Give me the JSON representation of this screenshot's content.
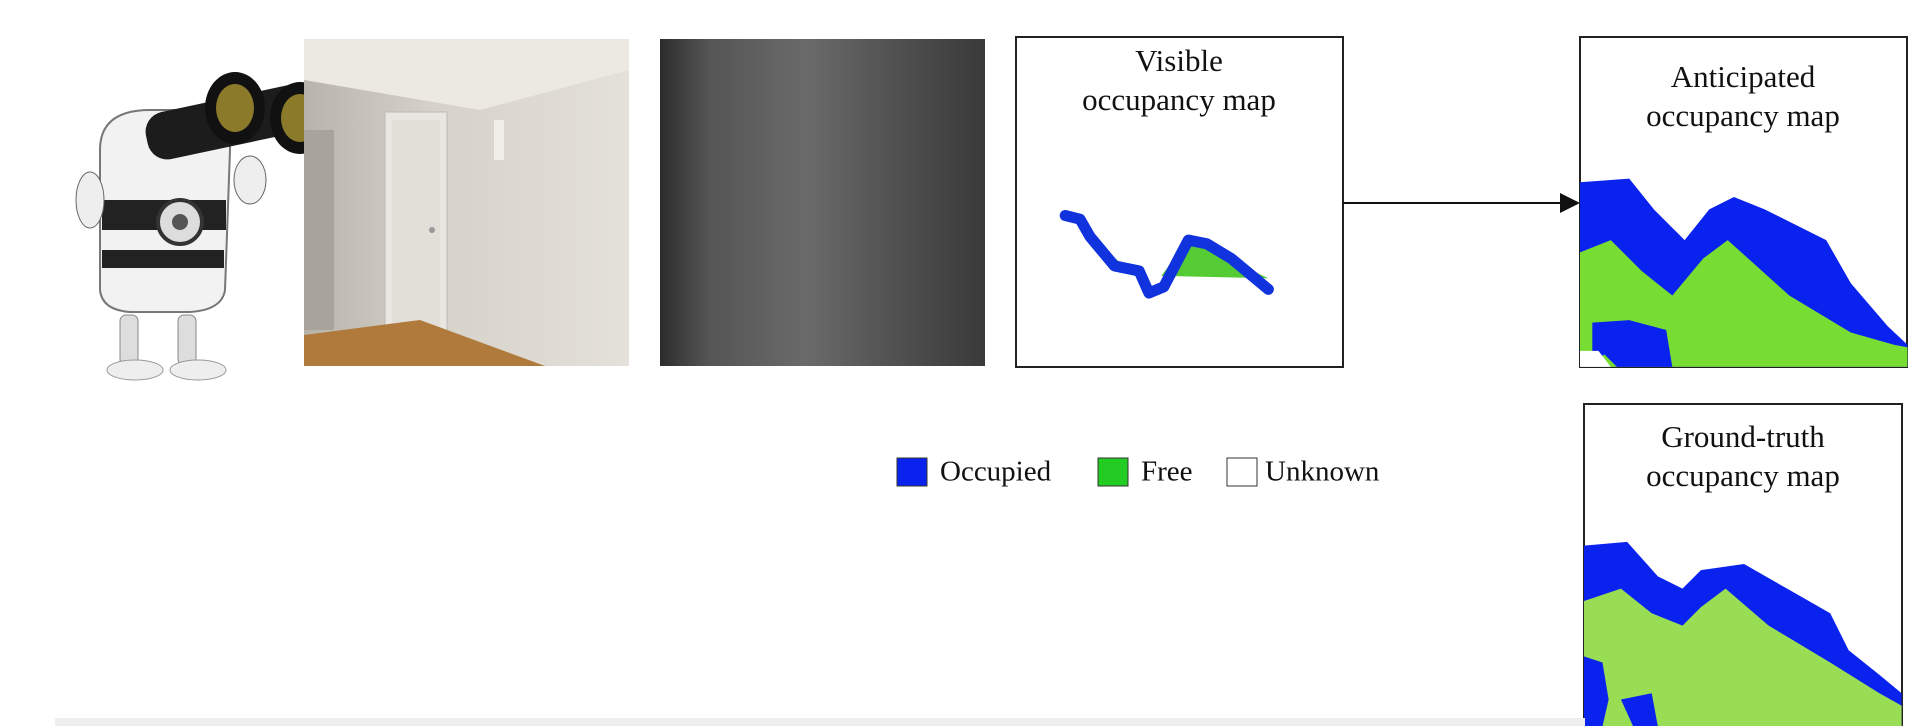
{
  "visible_map": {
    "title": [
      "Visible",
      "occupancy map"
    ]
  },
  "anticipated_map": {
    "title": [
      "Anticipated",
      "occupancy map"
    ]
  },
  "ground_truth_map": {
    "title": [
      "Ground-truth",
      "occupancy map"
    ]
  },
  "legend": [
    "Occupied",
    "Free",
    "Unknown"
  ]
}
